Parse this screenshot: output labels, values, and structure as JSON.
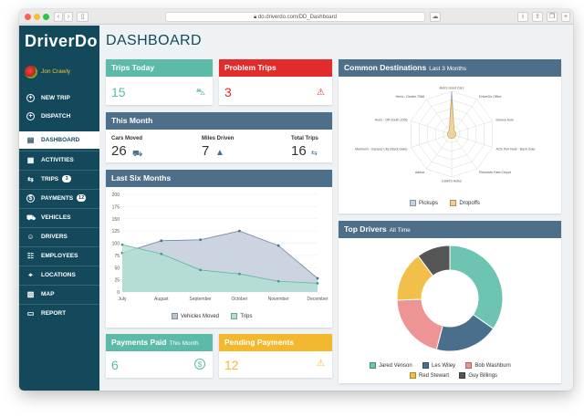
{
  "browser": {
    "url": "do.driverdo.com/DD_Dashboard"
  },
  "brand": {
    "name": "DriverDo"
  },
  "user": {
    "name": "Jon Crawly"
  },
  "nav": {
    "new_trip": "NEW TRIP",
    "dispatch": "DISPATCH",
    "dashboard": "DASHBOARD",
    "activities": "ACTIVITIES",
    "trips": "TRIPS",
    "trips_badge": "3",
    "payments": "PAYMENTS",
    "payments_badge": "12",
    "vehicles": "VEHICLES",
    "drivers": "DRIVERS",
    "employees": "EMPLOYEES",
    "locations": "LOCATIONS",
    "map": "MAP",
    "report": "REPORT"
  },
  "page": {
    "title": "DASHBOARD"
  },
  "trips_today": {
    "title": "Trips Today",
    "value": "15"
  },
  "problem_trips": {
    "title": "Problem Trips",
    "value": "3"
  },
  "this_month": {
    "title": "This Month",
    "cars_label": "Cars Moved",
    "cars_value": "26",
    "miles_label": "Miles Driven",
    "miles_value": "7",
    "total_label": "Total Trips",
    "total_value": "16"
  },
  "payments_paid": {
    "title": "Payments Paid",
    "subtitle": "This Month",
    "value": "6"
  },
  "pending_payments": {
    "title": "Pending Payments",
    "value": "12"
  },
  "colors": {
    "teal": "#5bbba8",
    "red": "#e22b2b",
    "blue": "#4e6f8a",
    "yellow": "#f2b92f",
    "sidebar": "#14495c"
  },
  "chart_data": [
    {
      "type": "area",
      "title": "Last Six Months",
      "categories": [
        "July",
        "August",
        "September",
        "October",
        "November",
        "December"
      ],
      "ylim": [
        0,
        200
      ],
      "yticks": [
        "200",
        "175",
        "150",
        "125",
        "100",
        "75",
        "50",
        "25",
        "0"
      ],
      "series": [
        {
          "name": "Vehicles Moved",
          "values": [
            80,
            105,
            107,
            125,
            95,
            28
          ],
          "color": "#b9c6d6"
        },
        {
          "name": "Trips",
          "values": [
            97,
            78,
            45,
            37,
            22,
            18
          ],
          "color": "#aee0d2"
        }
      ]
    },
    {
      "type": "radar",
      "title": "Common Destinations",
      "subtitle": "Last 3 Months",
      "categories": [
        "Bob's Used Cars",
        "DriverDo Office",
        "Deluxe Auto",
        "ACE Pull Heat - Back Gate",
        "Riverside Farm Depot",
        "David's Autos",
        "Adesa",
        "Manheim - Kansas City (Back Gate)",
        "Hertz - Off South 2256",
        "Hertz - Dealer 7068"
      ],
      "series": [
        {
          "name": "Pickups",
          "values": [
            10,
            1,
            1,
            1,
            1,
            1,
            1,
            1,
            1,
            1
          ],
          "color": "#c3d2e4"
        },
        {
          "name": "Dropoffs",
          "values": [
            8,
            1,
            1,
            1,
            1,
            1,
            1,
            1,
            1,
            1
          ],
          "color": "#f6d08a"
        }
      ]
    },
    {
      "type": "pie",
      "title": "Top Drivers",
      "subtitle": "All Time",
      "categories": [
        "Jared Venson",
        "Les Wiley",
        "Bob Washburn",
        "Red Stewart",
        "Guy Billings"
      ],
      "values": [
        34,
        19,
        20,
        15,
        10
      ],
      "colors": [
        "#6cc4b1",
        "#4a6f8c",
        "#ef9494",
        "#f2c04a",
        "#555555"
      ]
    }
  ]
}
